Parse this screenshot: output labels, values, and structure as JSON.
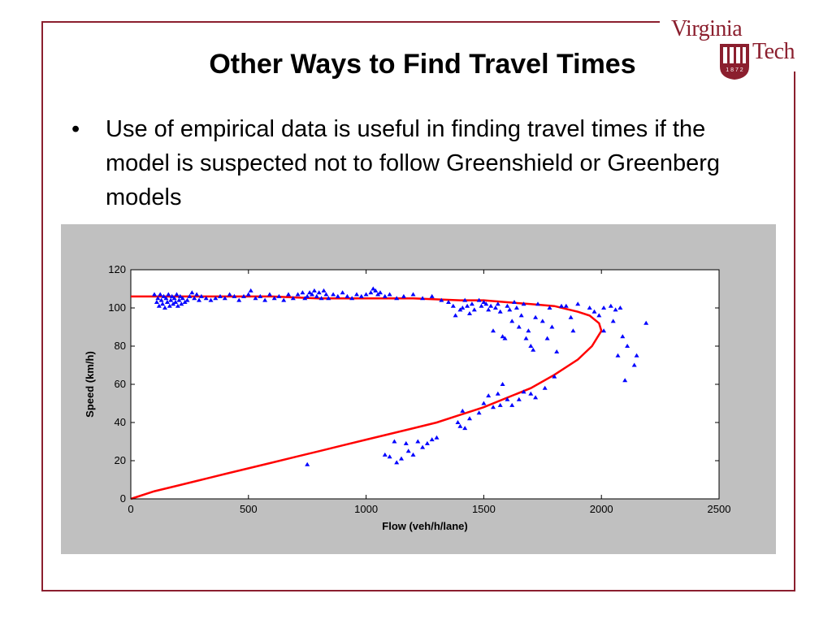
{
  "slide": {
    "title": "Other Ways to Find Travel Times",
    "bullet_symbol": "•",
    "bullet_text": "Use of empirical data is useful in finding travel times if the model is suspected not to follow Greenshield or Greenberg models"
  },
  "logo": {
    "line1": "Virginia",
    "line2": "Tech",
    "year_digits": "1 8 7 2"
  },
  "colors": {
    "frame": "#8b1f2e",
    "chart_bg": "#c0c0c0",
    "plot_bg": "#ffffff",
    "points": "#0000ff",
    "curve": "#ff0000"
  },
  "chart_data": {
    "type": "scatter",
    "title": "",
    "xlabel": "Flow (veh/h/lane)",
    "ylabel": "Speed (km/h)",
    "xlim": [
      0,
      2500
    ],
    "ylim": [
      0,
      120
    ],
    "xticks": [
      "0",
      "500",
      "1000",
      "1500",
      "2000",
      "2500"
    ],
    "yticks": [
      "0",
      "20",
      "40",
      "60",
      "80",
      "100",
      "120"
    ],
    "grid": false,
    "series": [
      {
        "type": "scatter",
        "points": [
          [
            100,
            107
          ],
          [
            110,
            103
          ],
          [
            115,
            105
          ],
          [
            120,
            101
          ],
          [
            125,
            107
          ],
          [
            130,
            104
          ],
          [
            135,
            102
          ],
          [
            140,
            106
          ],
          [
            145,
            100
          ],
          [
            150,
            105
          ],
          [
            155,
            103
          ],
          [
            160,
            107
          ],
          [
            165,
            101
          ],
          [
            170,
            104
          ],
          [
            175,
            106
          ],
          [
            180,
            102
          ],
          [
            185,
            105
          ],
          [
            190,
            103
          ],
          [
            195,
            107
          ],
          [
            200,
            101
          ],
          [
            205,
            104
          ],
          [
            210,
            106
          ],
          [
            215,
            102
          ],
          [
            220,
            105
          ],
          [
            230,
            103
          ],
          [
            240,
            104
          ],
          [
            250,
            106
          ],
          [
            260,
            108
          ],
          [
            270,
            105
          ],
          [
            280,
            107
          ],
          [
            290,
            104
          ],
          [
            300,
            106
          ],
          [
            320,
            105
          ],
          [
            340,
            104
          ],
          [
            360,
            105
          ],
          [
            380,
            106
          ],
          [
            400,
            105
          ],
          [
            420,
            107
          ],
          [
            440,
            106
          ],
          [
            460,
            104
          ],
          [
            480,
            106
          ],
          [
            500,
            107
          ],
          [
            510,
            109
          ],
          [
            530,
            105
          ],
          [
            550,
            106
          ],
          [
            570,
            104
          ],
          [
            590,
            107
          ],
          [
            610,
            105
          ],
          [
            630,
            106
          ],
          [
            650,
            104
          ],
          [
            670,
            107
          ],
          [
            690,
            105
          ],
          [
            710,
            107
          ],
          [
            730,
            108
          ],
          [
            740,
            105
          ],
          [
            750,
            106
          ],
          [
            760,
            108
          ],
          [
            770,
            107
          ],
          [
            780,
            109
          ],
          [
            790,
            106
          ],
          [
            800,
            108
          ],
          [
            810,
            105
          ],
          [
            820,
            109
          ],
          [
            830,
            107
          ],
          [
            840,
            105
          ],
          [
            860,
            107
          ],
          [
            880,
            106
          ],
          [
            900,
            108
          ],
          [
            920,
            106
          ],
          [
            940,
            105
          ],
          [
            960,
            107
          ],
          [
            980,
            106
          ],
          [
            1000,
            107
          ],
          [
            1020,
            108
          ],
          [
            1030,
            110
          ],
          [
            1040,
            109
          ],
          [
            1050,
            107
          ],
          [
            1060,
            108
          ],
          [
            1080,
            106
          ],
          [
            1100,
            107
          ],
          [
            1130,
            105
          ],
          [
            1160,
            106
          ],
          [
            1200,
            107
          ],
          [
            1240,
            105
          ],
          [
            1280,
            106
          ],
          [
            1320,
            104
          ],
          [
            1350,
            103
          ],
          [
            1370,
            101
          ],
          [
            1380,
            96
          ],
          [
            1400,
            99
          ],
          [
            1410,
            100
          ],
          [
            1420,
            104
          ],
          [
            1430,
            101
          ],
          [
            1440,
            97
          ],
          [
            1450,
            102
          ],
          [
            1460,
            99
          ],
          [
            1480,
            104
          ],
          [
            1490,
            101
          ],
          [
            1500,
            103
          ],
          [
            1510,
            102
          ],
          [
            1520,
            99
          ],
          [
            1530,
            101
          ],
          [
            1540,
            88
          ],
          [
            1550,
            100
          ],
          [
            1560,
            102
          ],
          [
            1570,
            98
          ],
          [
            1580,
            85
          ],
          [
            1590,
            84
          ],
          [
            1600,
            101
          ],
          [
            1610,
            99
          ],
          [
            1620,
            93
          ],
          [
            1630,
            103
          ],
          [
            1640,
            100
          ],
          [
            1650,
            90
          ],
          [
            1660,
            96
          ],
          [
            1670,
            102
          ],
          [
            1680,
            84
          ],
          [
            1690,
            88
          ],
          [
            1700,
            80
          ],
          [
            1710,
            78
          ],
          [
            1720,
            95
          ],
          [
            1730,
            102
          ],
          [
            1750,
            93
          ],
          [
            1770,
            84
          ],
          [
            1780,
            100
          ],
          [
            1790,
            90
          ],
          [
            1810,
            77
          ],
          [
            1830,
            101
          ],
          [
            1850,
            101
          ],
          [
            1870,
            95
          ],
          [
            1880,
            88
          ],
          [
            1900,
            102
          ],
          [
            1950,
            100
          ],
          [
            1970,
            98
          ],
          [
            1990,
            96
          ],
          [
            2010,
            100
          ],
          [
            2040,
            101
          ],
          [
            2050,
            93
          ],
          [
            2060,
            99
          ],
          [
            2080,
            100
          ],
          [
            2090,
            85
          ],
          [
            2100,
            62
          ],
          [
            2110,
            80
          ],
          [
            2140,
            70
          ],
          [
            2150,
            75
          ],
          [
            2190,
            92
          ],
          [
            2070,
            75
          ],
          [
            2010,
            88
          ],
          [
            1390,
            40
          ],
          [
            1400,
            38
          ],
          [
            1410,
            46
          ],
          [
            1420,
            37
          ],
          [
            1440,
            42
          ],
          [
            1480,
            45
          ],
          [
            1500,
            50
          ],
          [
            1520,
            54
          ],
          [
            1540,
            48
          ],
          [
            1560,
            55
          ],
          [
            1570,
            49
          ],
          [
            1580,
            60
          ],
          [
            1600,
            52
          ],
          [
            1620,
            49
          ],
          [
            1650,
            52
          ],
          [
            1670,
            56
          ],
          [
            1700,
            55
          ],
          [
            1720,
            53
          ],
          [
            1760,
            58
          ],
          [
            1800,
            64
          ],
          [
            1100,
            22
          ],
          [
            1120,
            30
          ],
          [
            1150,
            21
          ],
          [
            1170,
            29
          ],
          [
            1180,
            25
          ],
          [
            1200,
            23
          ],
          [
            1220,
            30
          ],
          [
            1240,
            27
          ],
          [
            1260,
            29
          ],
          [
            1280,
            31
          ],
          [
            1300,
            32
          ],
          [
            1130,
            19
          ],
          [
            750,
            18
          ],
          [
            1080,
            23
          ]
        ]
      },
      {
        "type": "line",
        "name": "",
        "points": [
          [
            0,
            0
          ],
          [
            100,
            4
          ],
          [
            200,
            7
          ],
          [
            300,
            10
          ],
          [
            400,
            13
          ],
          [
            500,
            16
          ],
          [
            600,
            19
          ],
          [
            700,
            22
          ],
          [
            800,
            25
          ],
          [
            900,
            28
          ],
          [
            1000,
            31
          ],
          [
            1100,
            34
          ],
          [
            1200,
            37
          ],
          [
            1300,
            40
          ],
          [
            1400,
            44
          ],
          [
            1500,
            48
          ],
          [
            1600,
            53
          ],
          [
            1700,
            58
          ],
          [
            1800,
            65
          ],
          [
            1900,
            73
          ],
          [
            1960,
            80
          ],
          [
            2000,
            88
          ],
          [
            1990,
            92
          ],
          [
            1950,
            96
          ],
          [
            1900,
            98
          ],
          [
            1800,
            101
          ],
          [
            1700,
            102
          ],
          [
            1600,
            103
          ],
          [
            1500,
            104
          ],
          [
            1400,
            104
          ],
          [
            1200,
            105
          ],
          [
            1000,
            105
          ],
          [
            800,
            105
          ],
          [
            600,
            106
          ],
          [
            400,
            106
          ],
          [
            200,
            106
          ],
          [
            0,
            106
          ]
        ]
      }
    ]
  }
}
